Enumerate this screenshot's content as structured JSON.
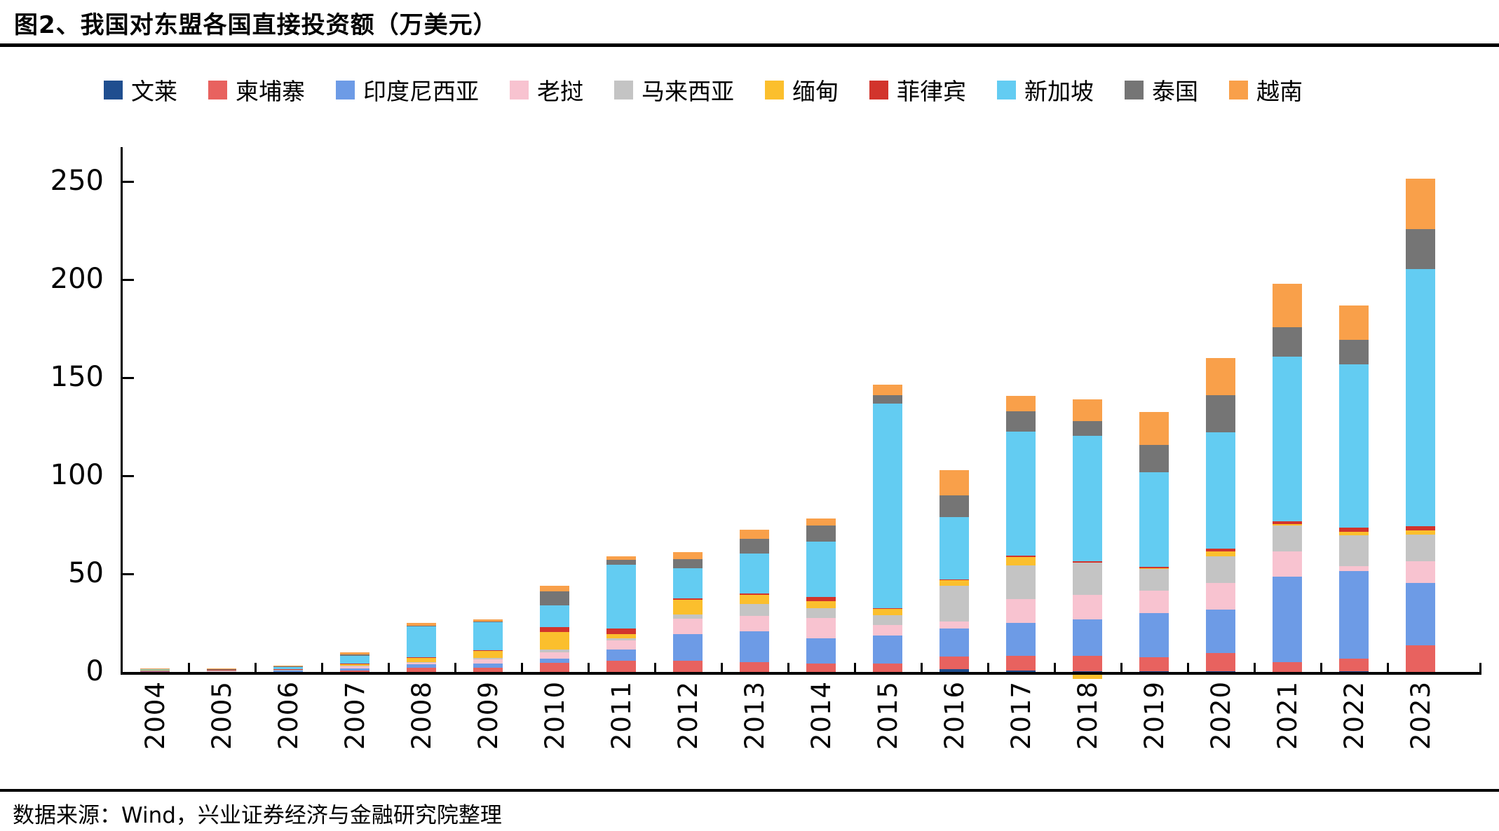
{
  "title": "图2、我国对东盟各国直接投资额（万美元）",
  "footer": {
    "source": "数据来源：Wind，兴业证券经济与金融研究院整理"
  },
  "chart_data": {
    "type": "bar",
    "stacked": true,
    "title": "图2、我国对东盟各国直接投资额（万美元）",
    "xlabel": "",
    "ylabel": "",
    "ylim": [
      0,
      250
    ],
    "yticks": [
      0,
      50,
      100,
      150,
      200,
      250
    ],
    "grid": false,
    "legend_position": "top",
    "categories": [
      "2004",
      "2005",
      "2006",
      "2007",
      "2008",
      "2009",
      "2010",
      "2011",
      "2012",
      "2013",
      "2014",
      "2015",
      "2016",
      "2017",
      "2018",
      "2019",
      "2020",
      "2021",
      "2022",
      "2023"
    ],
    "series": [
      {
        "name": "文莱",
        "color": "#1F4E8F",
        "values": [
          0,
          0,
          0,
          0.01,
          0.01,
          0.02,
          0.05,
          0.02,
          0.01,
          0.01,
          0.01,
          0,
          1.42,
          0.71,
          0.35,
          0.2,
          0.48,
          0.15,
          0.2,
          0.1
        ]
      },
      {
        "name": "柬埔寨",
        "color": "#E8625F",
        "values": [
          0.3,
          0.05,
          0.1,
          0.64,
          2.05,
          2.16,
          4.67,
          5.66,
          5.6,
          4.99,
          4.38,
          4.19,
          6.26,
          7.44,
          7.78,
          7.46,
          9.17,
          4.69,
          6.5,
          13.3
        ]
      },
      {
        "name": "印度尼西亚",
        "color": "#6D9BE6",
        "values": [
          0.62,
          0.12,
          0.57,
          0.99,
          1.74,
          2.26,
          2.01,
          5.92,
          13.61,
          15.63,
          12.72,
          14.51,
          14.61,
          16.82,
          18.65,
          22.24,
          21.98,
          43.73,
          44.6,
          31.9
        ]
      },
      {
        "name": "老挝",
        "color": "#F8C3D0",
        "values": [
          0.04,
          0.21,
          0.48,
          1.54,
          0.87,
          2.03,
          3.14,
          4.58,
          8.09,
          7.81,
          10.27,
          5.18,
          3.28,
          12.2,
          12.39,
          11.5,
          13.56,
          12.79,
          2.8,
          11.1
        ]
      },
      {
        "name": "马来西亚",
        "color": "#C4C4C4",
        "values": [
          0.08,
          0.57,
          0.07,
          0.17,
          0.34,
          0.54,
          1.64,
          0.95,
          1.99,
          6.16,
          5.21,
          4.89,
          18.3,
          17.22,
          16.63,
          11.08,
          13.74,
          13.4,
          15.7,
          13.5
        ]
      },
      {
        "name": "缅甸",
        "color": "#FBBF2D",
        "values": [
          0.04,
          0.12,
          0.13,
          0.92,
          2.33,
          3.77,
          8.76,
          2.18,
          7.49,
          4.75,
          3.43,
          3.32,
          2.88,
          4.28,
          -2.14,
          0.4,
          2.56,
          0.43,
          1.8,
          2.2
        ]
      },
      {
        "name": "菲律宾",
        "color": "#D2342C",
        "values": [
          0,
          0.09,
          0.09,
          0.04,
          0.33,
          0.4,
          2.44,
          2.67,
          0.75,
          0.54,
          2.25,
          0.3,
          0.32,
          0.54,
          0.61,
          0.75,
          1.34,
          1.46,
          1.8,
          2.2
        ]
      },
      {
        "name": "新加坡",
        "color": "#63CCF2",
        "values": [
          0.48,
          0.2,
          1.32,
          3.98,
          15.51,
          14.14,
          11.19,
          32.69,
          15.19,
          20.33,
          28.14,
          104.52,
          31.72,
          63.2,
          64.11,
          48.26,
          59.41,
          84.05,
          83.5,
          131.0
        ]
      },
      {
        "name": "泰国",
        "color": "#757575",
        "values": [
          0.23,
          0.05,
          0.16,
          0.76,
          0.45,
          0.5,
          7.0,
          2.3,
          4.78,
          7.55,
          8.39,
          4.07,
          11.21,
          10.58,
          7.37,
          13.72,
          18.82,
          15.18,
          12.5,
          20.3
        ]
      },
      {
        "name": "越南",
        "color": "#F9A04A",
        "values": [
          0.17,
          0.21,
          0.44,
          1.1,
          1.2,
          1.12,
          3.05,
          1.89,
          3.49,
          4.8,
          3.33,
          5.6,
          12.79,
          7.64,
          11.15,
          16.8,
          18.88,
          22.09,
          17.3,
          25.8
        ]
      }
    ]
  }
}
